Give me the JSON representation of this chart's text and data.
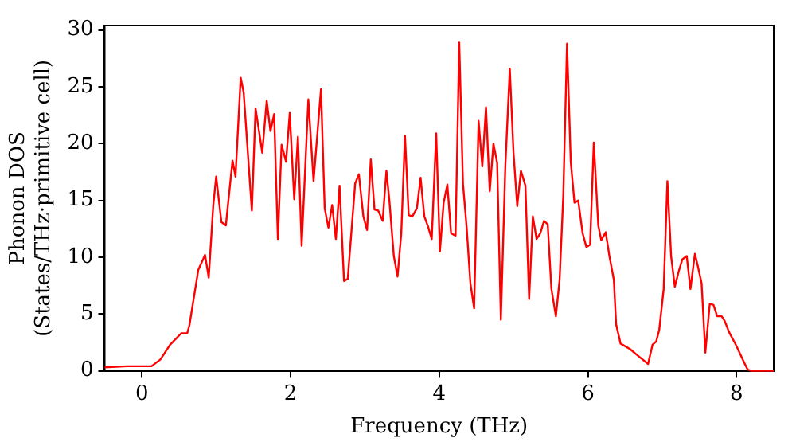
{
  "chart_data": {
    "type": "line",
    "xlabel": "Frequency (THz)",
    "ylabel": "Phonon DOS\n(States/THz·primitive cell)",
    "xlim": [
      -0.5,
      8.5
    ],
    "ylim": [
      0,
      30.4
    ],
    "xticks": [
      0,
      2,
      4,
      6,
      8
    ],
    "yticks": [
      0,
      5,
      10,
      15,
      20,
      25,
      30
    ],
    "grid": false,
    "legend": false,
    "marker": "none",
    "line_style": "solid",
    "series": [
      {
        "color": "#ff0000",
        "x": [
          -0.5,
          -0.2,
          0,
          0.13,
          0.25,
          0.38,
          0.53,
          0.61,
          0.64,
          0.76,
          0.85,
          0.9,
          0.96,
          1.0,
          1.07,
          1.13,
          1.22,
          1.26,
          1.33,
          1.37,
          1.48,
          1.53,
          1.62,
          1.68,
          1.73,
          1.78,
          1.83,
          1.88,
          1.94,
          1.99,
          2.05,
          2.1,
          2.15,
          2.24,
          2.31,
          2.41,
          2.46,
          2.51,
          2.56,
          2.61,
          2.66,
          2.72,
          2.77,
          2.87,
          2.92,
          2.98,
          3.03,
          3.08,
          3.13,
          3.18,
          3.24,
          3.29,
          3.33,
          3.39,
          3.44,
          3.49,
          3.54,
          3.59,
          3.64,
          3.7,
          3.75,
          3.8,
          3.85,
          3.9,
          3.96,
          4.01,
          4.06,
          4.11,
          4.16,
          4.22,
          4.27,
          4.32,
          4.37,
          4.42,
          4.47,
          4.53,
          4.58,
          4.63,
          4.68,
          4.73,
          4.78,
          4.83,
          4.89,
          4.95,
          5.0,
          5.05,
          5.1,
          5.16,
          5.21,
          5.26,
          5.31,
          5.36,
          5.41,
          5.46,
          5.51,
          5.57,
          5.62,
          5.67,
          5.72,
          5.77,
          5.82,
          5.87,
          5.93,
          5.98,
          6.03,
          6.08,
          6.14,
          6.18,
          6.24,
          6.29,
          6.35,
          6.38,
          6.44,
          6.57,
          6.68,
          6.81,
          6.87,
          6.92,
          6.96,
          7.02,
          7.07,
          7.12,
          7.17,
          7.22,
          7.27,
          7.33,
          7.38,
          7.44,
          7.48,
          7.53,
          7.58,
          7.64,
          7.69,
          7.74,
          7.8,
          7.84,
          7.9,
          7.99,
          8.09,
          8.15,
          8.2,
          8.5
        ],
        "values": [
          0.3,
          0.4,
          0.4,
          0.4,
          1.0,
          2.3,
          3.3,
          3.3,
          4.0,
          8.9,
          10.2,
          8.2,
          14.5,
          17.1,
          13.1,
          12.8,
          18.5,
          17.1,
          25.8,
          24.5,
          14.1,
          23.1,
          19.2,
          23.8,
          21.1,
          22.6,
          11.6,
          19.9,
          18.4,
          22.7,
          15.1,
          20.6,
          11.0,
          23.9,
          16.7,
          24.8,
          14.3,
          12.6,
          14.6,
          11.6,
          16.3,
          7.9,
          8.1,
          16.5,
          17.3,
          13.6,
          12.4,
          18.6,
          14.2,
          14.1,
          13.2,
          17.6,
          15.0,
          10.1,
          8.3,
          12.1,
          20.7,
          13.7,
          13.6,
          14.3,
          17.0,
          13.6,
          12.7,
          11.6,
          20.9,
          10.5,
          14.8,
          16.4,
          12.1,
          11.9,
          28.9,
          16.5,
          12.6,
          7.7,
          5.5,
          22.0,
          18.0,
          23.2,
          15.8,
          20.0,
          18.3,
          4.5,
          18.0,
          26.6,
          19.2,
          14.5,
          17.6,
          16.3,
          6.3,
          13.6,
          11.6,
          12.1,
          13.2,
          12.9,
          7.2,
          4.8,
          8.0,
          15.5,
          28.8,
          18.4,
          14.8,
          15.0,
          12.1,
          10.9,
          11.1,
          20.1,
          12.8,
          11.5,
          12.2,
          10.1,
          8.0,
          4.1,
          2.4,
          1.9,
          1.3,
          0.6,
          2.3,
          2.6,
          3.6,
          7.2,
          16.7,
          10.1,
          7.4,
          8.7,
          9.8,
          10.1,
          7.2,
          10.3,
          9.2,
          7.7,
          1.6,
          5.9,
          5.8,
          4.8,
          4.8,
          4.4,
          3.4,
          2.3,
          0.9,
          0.1,
          0,
          0
        ]
      }
    ]
  }
}
